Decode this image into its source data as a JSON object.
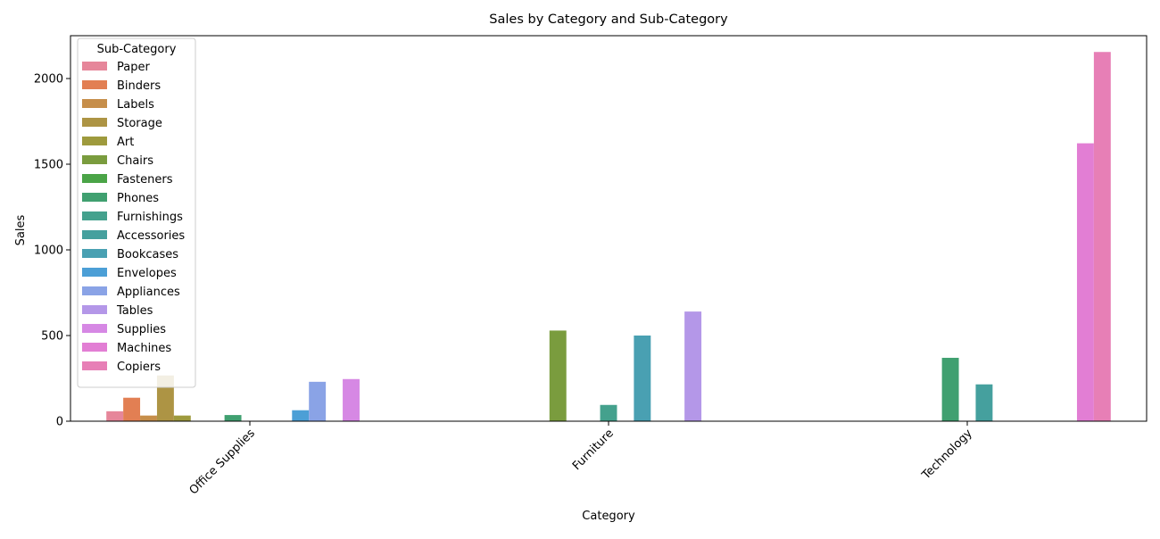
{
  "chart_data": {
    "type": "bar",
    "title": "Sales by Category and Sub-Category",
    "xlabel": "Category",
    "ylabel": "Sales",
    "ylim": [
      0,
      2250
    ],
    "yticks": [
      0,
      500,
      1000,
      1500,
      2000
    ],
    "categories": [
      "Office Supplies",
      "Furniture",
      "Technology"
    ],
    "legend": {
      "title": "Sub-Category",
      "position": "top-left"
    },
    "grid": false,
    "series": [
      {
        "name": "Paper",
        "color": "#e6869a",
        "values": [
          58,
          0,
          0
        ]
      },
      {
        "name": "Binders",
        "color": "#e27f53",
        "values": [
          137,
          0,
          0
        ]
      },
      {
        "name": "Labels",
        "color": "#c68e4a",
        "values": [
          33,
          0,
          0
        ]
      },
      {
        "name": "Storage",
        "color": "#ad9444",
        "values": [
          267,
          0,
          0
        ]
      },
      {
        "name": "Art",
        "color": "#9e9a3d",
        "values": [
          33,
          0,
          0
        ]
      },
      {
        "name": "Chairs",
        "color": "#7a9c3e",
        "values": [
          0,
          529,
          0
        ]
      },
      {
        "name": "Fasteners",
        "color": "#4aa447",
        "values": [
          0,
          0,
          0
        ]
      },
      {
        "name": "Phones",
        "color": "#40a070",
        "values": [
          36,
          0,
          370
        ]
      },
      {
        "name": "Furnishings",
        "color": "#44a18d",
        "values": [
          0,
          95,
          0
        ]
      },
      {
        "name": "Accessories",
        "color": "#45a09e",
        "values": [
          0,
          0,
          215
        ]
      },
      {
        "name": "Bookcases",
        "color": "#49a0b2",
        "values": [
          0,
          500,
          0
        ]
      },
      {
        "name": "Envelopes",
        "color": "#4c9fd6",
        "values": [
          64,
          0,
          0
        ]
      },
      {
        "name": "Appliances",
        "color": "#8aa3e6",
        "values": [
          230,
          0,
          0
        ]
      },
      {
        "name": "Tables",
        "color": "#b497e8",
        "values": [
          0,
          640,
          0
        ]
      },
      {
        "name": "Supplies",
        "color": "#d688e4",
        "values": [
          246,
          0,
          0
        ]
      },
      {
        "name": "Machines",
        "color": "#e27ed4",
        "values": [
          0,
          0,
          1622
        ]
      },
      {
        "name": "Copiers",
        "color": "#e77fb6",
        "values": [
          0,
          0,
          2155
        ]
      }
    ]
  }
}
